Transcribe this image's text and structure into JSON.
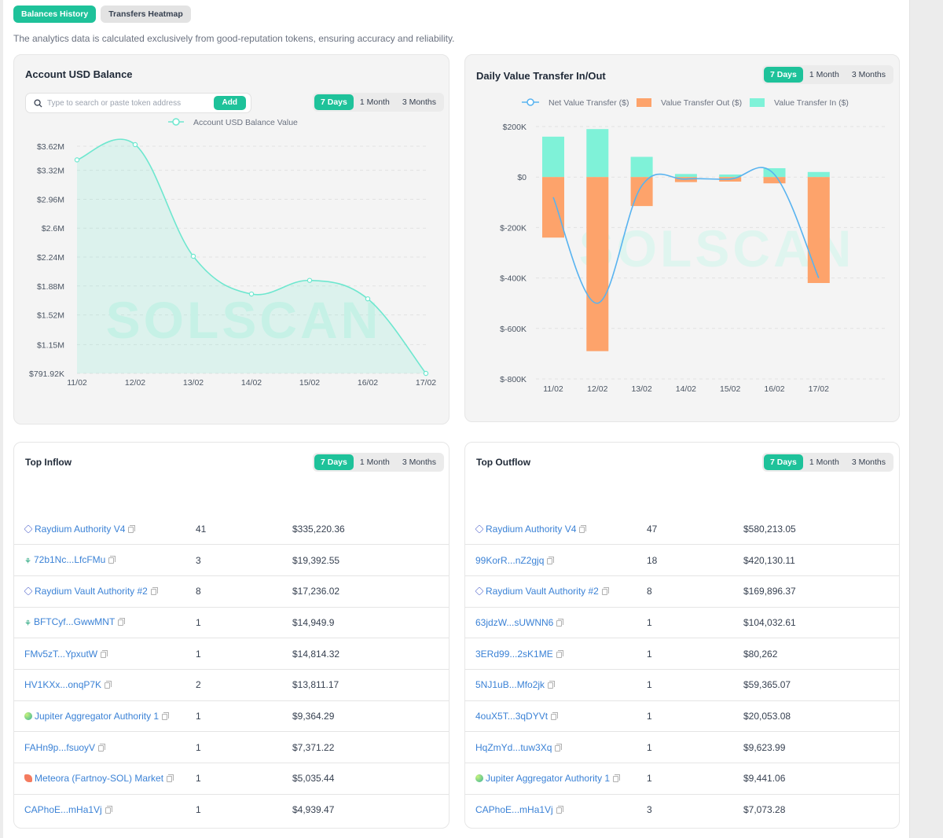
{
  "page_tabs": [
    "Balances History",
    "Transfers Heatmap"
  ],
  "notice": "The analytics data is calculated exclusively from good-reputation tokens, ensuring accuracy and reliability.",
  "range_options": [
    "7 Days",
    "1 Month",
    "3 Months"
  ],
  "colors": {
    "accent": "#1ec29a",
    "balance_line": "#6ee7cf",
    "net_line": "#58b3f0",
    "transfer_out": "#fda36b",
    "transfer_in": "#7ff2d8",
    "link": "#3b82d6"
  },
  "balance_card": {
    "title": "Account USD Balance",
    "search_placeholder": "Type to search or paste token address",
    "add_label": "Add",
    "legend": "Account USD Balance Value",
    "watermark": "SOLSCAN"
  },
  "transfer_card": {
    "title": "Daily Value Transfer In/Out",
    "legend": [
      "Net Value Transfer ($)",
      "Value Transfer Out ($)",
      "Value Transfer In ($)"
    ],
    "watermark": "SOLSCAN"
  },
  "chart_data": [
    {
      "type": "area",
      "title": "Account USD Balance",
      "x": [
        "11/02",
        "12/02",
        "13/02",
        "14/02",
        "15/02",
        "16/02",
        "17/02"
      ],
      "series": [
        {
          "name": "Account USD Balance Value",
          "values": [
            3450000,
            3640000,
            2250000,
            1780000,
            1950000,
            1720000,
            791920
          ]
        }
      ],
      "y_ticks": [
        "$3.62M",
        "$3.32M",
        "$2.96M",
        "$2.6M",
        "$2.24M",
        "$1.88M",
        "$1.52M",
        "$1.15M",
        "$791.92K"
      ],
      "ylim": [
        791920,
        3620000
      ],
      "grid": true
    },
    {
      "type": "bar",
      "title": "Daily Value Transfer In/Out",
      "categories": [
        "11/02",
        "12/02",
        "13/02",
        "14/02",
        "15/02",
        "16/02",
        "17/02"
      ],
      "series": [
        {
          "name": "Value Transfer In ($)",
          "values": [
            160000,
            190000,
            80000,
            12000,
            10000,
            35000,
            20000
          ]
        },
        {
          "name": "Value Transfer Out ($)",
          "values": [
            -240000,
            -690000,
            -115000,
            -20000,
            -18000,
            -25000,
            -420000
          ]
        },
        {
          "name": "Net Value Transfer ($)",
          "type": "line",
          "values": [
            -80000,
            -500000,
            -35000,
            -8000,
            -8000,
            10000,
            -400000
          ]
        }
      ],
      "y_ticks": [
        "$200K",
        "$0",
        "$-200K",
        "$-400K",
        "$-600K",
        "$-800K"
      ],
      "ylim": [
        -800000,
        200000
      ],
      "grid": true
    }
  ],
  "top_inflow": {
    "title": "Top Inflow",
    "rows": [
      {
        "name": "Raydium Authority V4",
        "icon": "raydium-icon",
        "count": "41",
        "value": "$335,220.36"
      },
      {
        "name": "72b1Nc...LfcFMu",
        "icon": "org-icon",
        "count": "3",
        "value": "$19,392.55"
      },
      {
        "name": "Raydium Vault Authority #2",
        "icon": "raydium-icon",
        "count": "8",
        "value": "$17,236.02"
      },
      {
        "name": "BFTCyf...GwwMNT",
        "icon": "org-icon",
        "count": "1",
        "value": "$14,949.9"
      },
      {
        "name": "FMv5zT...YpxutW",
        "icon": "",
        "count": "1",
        "value": "$14,814.32"
      },
      {
        "name": "HV1KXx...onqP7K",
        "icon": "",
        "count": "2",
        "value": "$13,811.17"
      },
      {
        "name": "Jupiter Aggregator Authority 1",
        "icon": "jupiter-icon",
        "count": "1",
        "value": "$9,364.29"
      },
      {
        "name": "FAHn9p...fsuoyV",
        "icon": "",
        "count": "1",
        "value": "$7,371.22"
      },
      {
        "name": "Meteora (Fartnoy-SOL) Market",
        "icon": "meteora-icon",
        "count": "1",
        "value": "$5,035.44"
      },
      {
        "name": "CAPhoE...mHa1Vj",
        "icon": "",
        "count": "1",
        "value": "$4,939.47"
      }
    ]
  },
  "top_outflow": {
    "title": "Top Outflow",
    "rows": [
      {
        "name": "Raydium Authority V4",
        "icon": "raydium-icon",
        "count": "47",
        "value": "$580,213.05"
      },
      {
        "name": "99KorR...nZ2gjq",
        "icon": "",
        "count": "18",
        "value": "$420,130.11"
      },
      {
        "name": "Raydium Vault Authority #2",
        "icon": "raydium-icon",
        "count": "8",
        "value": "$169,896.37"
      },
      {
        "name": "63jdzW...sUWNN6",
        "icon": "",
        "count": "1",
        "value": "$104,032.61"
      },
      {
        "name": "3ERd99...2sK1ME",
        "icon": "",
        "count": "1",
        "value": "$80,262"
      },
      {
        "name": "5NJ1uB...Mfo2jk",
        "icon": "",
        "count": "1",
        "value": "$59,365.07"
      },
      {
        "name": "4ouX5T...3qDYVt",
        "icon": "",
        "count": "1",
        "value": "$20,053.08"
      },
      {
        "name": "HqZmYd...tuw3Xq",
        "icon": "",
        "count": "1",
        "value": "$9,623.99"
      },
      {
        "name": "Jupiter Aggregator Authority 1",
        "icon": "jupiter-icon",
        "count": "1",
        "value": "$9,441.06"
      },
      {
        "name": "CAPhoE...mHa1Vj",
        "icon": "",
        "count": "3",
        "value": "$7,073.28"
      }
    ]
  }
}
